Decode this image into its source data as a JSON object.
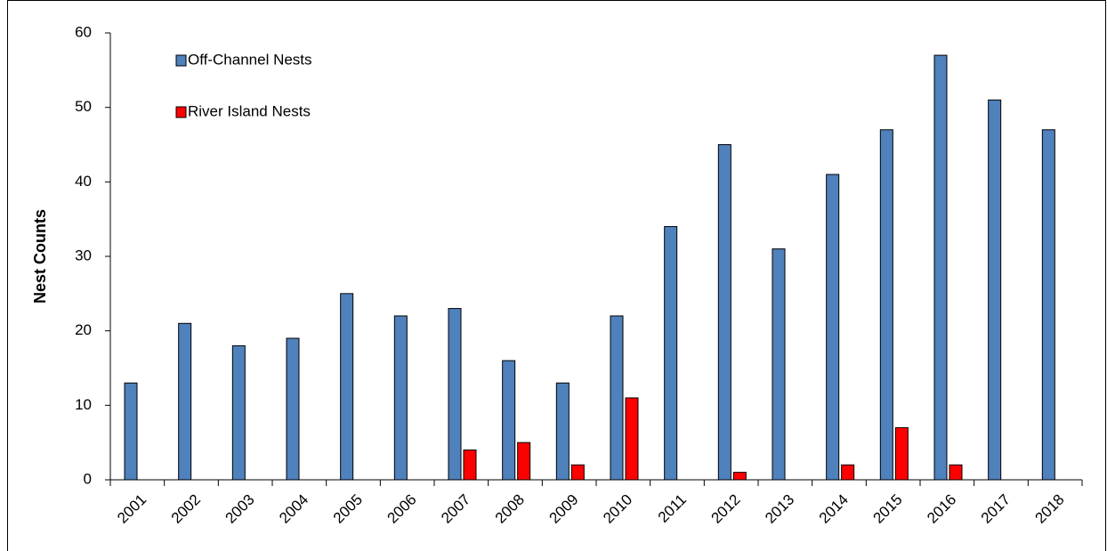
{
  "chart_data": {
    "type": "bar",
    "y_label": "Nest Counts",
    "categories": [
      "2001",
      "2002",
      "2003",
      "2004",
      "2005",
      "2006",
      "2007",
      "2008",
      "2009",
      "2010",
      "2011",
      "2012",
      "2013",
      "2014",
      "2015",
      "2016",
      "2017",
      "2018"
    ],
    "series": [
      {
        "name": "Off-Channel Nests",
        "color": "#4f81bd",
        "values": [
          13,
          21,
          18,
          19,
          25,
          22,
          23,
          16,
          13,
          22,
          34,
          45,
          31,
          41,
          47,
          57,
          51,
          47
        ]
      },
      {
        "name": "River Island Nests",
        "color": "#ff0000",
        "values": [
          0,
          0,
          0,
          0,
          0,
          0,
          4,
          5,
          2,
          11,
          0,
          1,
          0,
          2,
          7,
          2,
          0,
          0
        ]
      }
    ],
    "ylim": [
      0,
      60
    ],
    "yticks": [
      0,
      10,
      20,
      30,
      40,
      50,
      60
    ],
    "grid": false,
    "legend": "top-left"
  }
}
